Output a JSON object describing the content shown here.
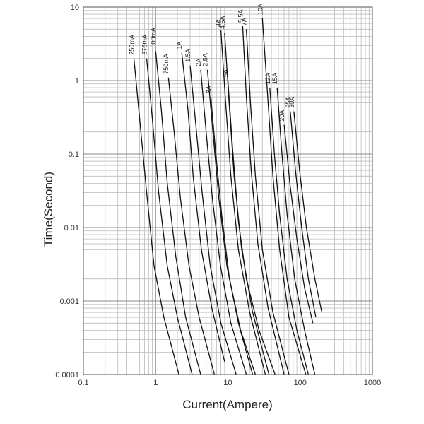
{
  "chart_data": {
    "type": "line",
    "xscale": "log",
    "yscale": "log",
    "xlim": [
      0.1,
      1000
    ],
    "ylim": [
      0.0001,
      10
    ],
    "xlabel": "Current(Ampere)",
    "ylabel": "Time(Second)",
    "grid": true,
    "xticks": [
      {
        "value": 0.1,
        "label": "0.1"
      },
      {
        "value": 1,
        "label": "1"
      },
      {
        "value": 10,
        "label": "10"
      },
      {
        "value": 100,
        "label": "100"
      },
      {
        "value": 1000,
        "label": "1000"
      }
    ],
    "yticks": [
      {
        "value": 10,
        "label": "10"
      },
      {
        "value": 1,
        "label": "1"
      },
      {
        "value": 0.1,
        "label": "0.1"
      },
      {
        "value": 0.01,
        "label": "0.01"
      },
      {
        "value": 0.001,
        "label": "0.001"
      },
      {
        "value": 0.0001,
        "label": "0.0001"
      }
    ],
    "series": [
      {
        "name": "250mA",
        "points": [
          [
            0.5,
            2.0
          ],
          [
            0.6,
            0.3
          ],
          [
            0.75,
            0.03
          ],
          [
            0.95,
            0.003
          ],
          [
            1.3,
            0.0006
          ],
          [
            2.1,
            0.0001
          ]
        ]
      },
      {
        "name": "375mA",
        "points": [
          [
            0.75,
            2.0
          ],
          [
            0.9,
            0.3
          ],
          [
            1.1,
            0.03
          ],
          [
            1.45,
            0.003
          ],
          [
            2.0,
            0.0006
          ],
          [
            3.2,
            0.0001
          ]
        ]
      },
      {
        "name": "500mA",
        "points": [
          [
            1.0,
            2.5
          ],
          [
            1.2,
            0.4
          ],
          [
            1.45,
            0.04
          ],
          [
            1.9,
            0.004
          ],
          [
            2.6,
            0.0006
          ],
          [
            4.2,
            0.0001
          ]
        ]
      },
      {
        "name": "750mA",
        "points": [
          [
            1.5,
            1.1
          ],
          [
            1.8,
            0.2
          ],
          [
            2.2,
            0.025
          ],
          [
            2.9,
            0.003
          ],
          [
            4.0,
            0.0006
          ],
          [
            6.5,
            0.0001
          ]
        ]
      },
      {
        "name": "1A",
        "points": [
          [
            2.3,
            2.4
          ],
          [
            2.8,
            0.4
          ],
          [
            3.3,
            0.05
          ],
          [
            4.3,
            0.005
          ],
          [
            6.0,
            0.0008
          ],
          [
            9.0,
            0.00015
          ]
        ]
      },
      {
        "name": "1.5A",
        "points": [
          [
            3.0,
            1.6
          ],
          [
            3.6,
            0.25
          ],
          [
            4.4,
            0.03
          ],
          [
            5.7,
            0.003
          ],
          [
            8.0,
            0.0005
          ],
          [
            13,
            0.0001
          ]
        ]
      },
      {
        "name": "2A",
        "points": [
          [
            4.2,
            1.4
          ],
          [
            5.0,
            0.2
          ],
          [
            6.1,
            0.025
          ],
          [
            7.9,
            0.003
          ],
          [
            11,
            0.0005
          ],
          [
            18,
            0.0001
          ]
        ]
      },
      {
        "name": "2.5A",
        "points": [
          [
            5.2,
            1.4
          ],
          [
            6.2,
            0.2
          ],
          [
            7.5,
            0.025
          ],
          [
            9.7,
            0.003
          ],
          [
            14,
            0.0005
          ],
          [
            22,
            0.0001
          ]
        ]
      },
      {
        "name": "3A",
        "points": [
          [
            5.8,
            0.6
          ],
          [
            6.8,
            0.1
          ],
          [
            8.2,
            0.015
          ],
          [
            10.5,
            0.002
          ],
          [
            15,
            0.0004
          ],
          [
            24,
            0.0001
          ]
        ]
      },
      {
        "name": "4A",
        "points": [
          [
            8.0,
            4.8
          ],
          [
            9.3,
            0.5
          ],
          [
            11,
            0.05
          ],
          [
            14,
            0.005
          ],
          [
            20,
            0.0007
          ],
          [
            33,
            0.0001
          ]
        ]
      },
      {
        "name": "4.5A",
        "points": [
          [
            9.0,
            4.5
          ],
          [
            10.4,
            0.5
          ],
          [
            12.2,
            0.05
          ],
          [
            15.5,
            0.005
          ],
          [
            22,
            0.0007
          ],
          [
            37,
            0.0001
          ]
        ]
      },
      {
        "name": "5A",
        "points": [
          [
            10,
            1.0
          ],
          [
            11.6,
            0.12
          ],
          [
            14,
            0.012
          ],
          [
            18,
            0.002
          ],
          [
            27,
            0.0004
          ],
          [
            45,
            0.0001
          ]
        ]
      },
      {
        "name": "5.5A",
        "points": [
          [
            16,
            5.5
          ],
          [
            18,
            0.6
          ],
          [
            21,
            0.06
          ],
          [
            26,
            0.006
          ],
          [
            36,
            0.0008
          ],
          [
            60,
            0.0001
          ]
        ]
      },
      {
        "name": "7A",
        "points": [
          [
            18,
            5.0
          ],
          [
            20.5,
            0.5
          ],
          [
            24,
            0.05
          ],
          [
            30,
            0.005
          ],
          [
            42,
            0.0007
          ],
          [
            70,
            0.0001
          ]
        ]
      },
      {
        "name": "10A",
        "points": [
          [
            30,
            7.0
          ],
          [
            36,
            0.5
          ],
          [
            42,
            0.05
          ],
          [
            52,
            0.005
          ],
          [
            70,
            0.0006
          ],
          [
            120,
            0.0001
          ]
        ]
      },
      {
        "name": "12A",
        "points": [
          [
            38,
            0.8
          ],
          [
            44,
            0.1
          ],
          [
            52,
            0.015
          ],
          [
            66,
            0.002
          ],
          [
            90,
            0.0004
          ],
          [
            130,
            0.0001
          ]
        ]
      },
      {
        "name": "15A",
        "points": [
          [
            48,
            0.8
          ],
          [
            56,
            0.1
          ],
          [
            66,
            0.015
          ],
          [
            84,
            0.002
          ],
          [
            115,
            0.0004
          ],
          [
            160,
            0.0001
          ]
        ]
      },
      {
        "name": "20A",
        "points": [
          [
            60,
            0.25
          ],
          [
            72,
            0.04
          ],
          [
            90,
            0.007
          ],
          [
            115,
            0.0015
          ],
          [
            150,
            0.0005
          ]
        ]
      },
      {
        "name": "25A",
        "points": [
          [
            73,
            0.38
          ],
          [
            86,
            0.06
          ],
          [
            105,
            0.01
          ],
          [
            130,
            0.002
          ],
          [
            165,
            0.0006
          ]
        ]
      },
      {
        "name": "30A",
        "points": [
          [
            82,
            0.38
          ],
          [
            98,
            0.06
          ],
          [
            122,
            0.01
          ],
          [
            160,
            0.002
          ],
          [
            200,
            0.0007
          ]
        ]
      }
    ]
  }
}
